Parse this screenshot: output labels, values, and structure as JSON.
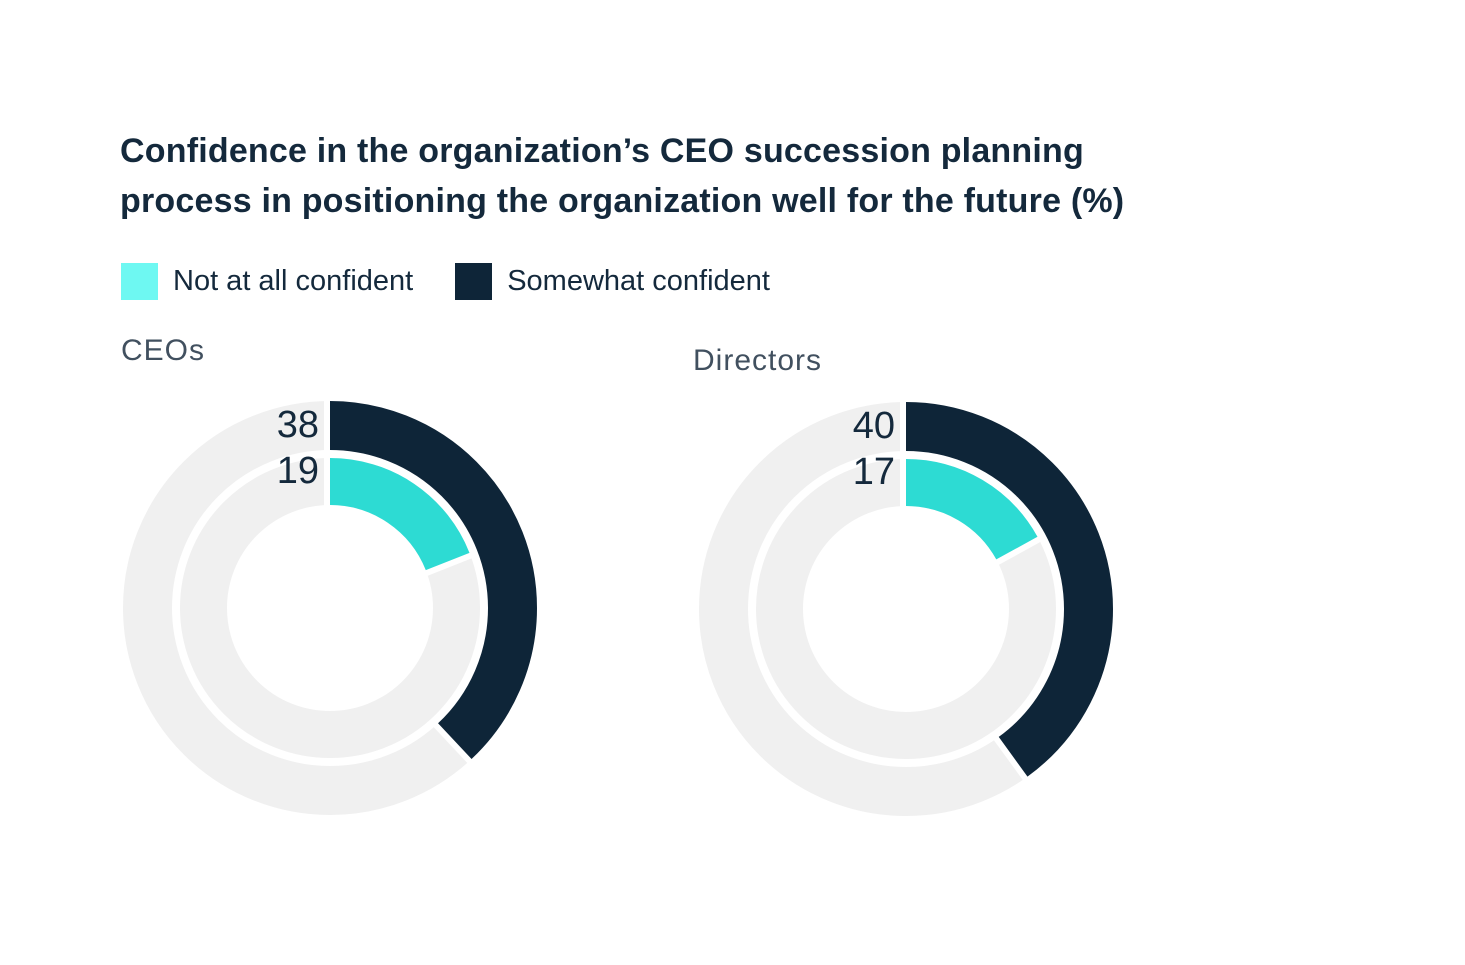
{
  "header": {
    "title": "Confidence in the organization’s CEO succession planning process in positioning the organization well for the future (%)",
    "title_lines": [
      "Confidence in the organization’s CEO succession planning",
      "process in positioning the organization well for the future (%)"
    ]
  },
  "legend": {
    "items": [
      {
        "label": "Not at all confident",
        "color": "#6ef8f2"
      },
      {
        "label": "Somewhat confident",
        "color": "#0e2538"
      }
    ]
  },
  "chart_data": {
    "type": "pie",
    "variant": "concentric-donut",
    "title": "Confidence in the organization’s CEO succession planning process in positioning the organization well for the future (%)",
    "unit": "%",
    "max": 100,
    "start_angle_deg": 0,
    "direction": "clockwise",
    "track_color": "#f0f0f0",
    "gap_color": "#ffffff",
    "legend": [
      {
        "label": "Not at all confident",
        "color": "#6ef8f2"
      },
      {
        "label": "Somewhat confident",
        "color": "#0e2538"
      }
    ],
    "charts": [
      {
        "group": "CEOs",
        "rings": [
          {
            "position": "outer",
            "label": "Somewhat confident",
            "value": 38,
            "color": "#0e2538"
          },
          {
            "position": "inner",
            "label": "Not at all confident",
            "value": 19,
            "color": "#2ddbd3"
          }
        ]
      },
      {
        "group": "Directors",
        "rings": [
          {
            "position": "outer",
            "label": "Somewhat confident",
            "value": 40,
            "color": "#0e2538"
          },
          {
            "position": "inner",
            "label": "Not at all confident",
            "value": 17,
            "color": "#2ddbd3"
          }
        ]
      }
    ]
  },
  "colors": {
    "background": "#ffffff",
    "title_text": "#14293c",
    "group_label_text": "#41505f",
    "value_label_text": "#14293c",
    "navy": "#0e2538",
    "cyan_arc": "#2ddbd3",
    "cyan_legend": "#6ef8f2",
    "track": "#f0f0f0"
  }
}
